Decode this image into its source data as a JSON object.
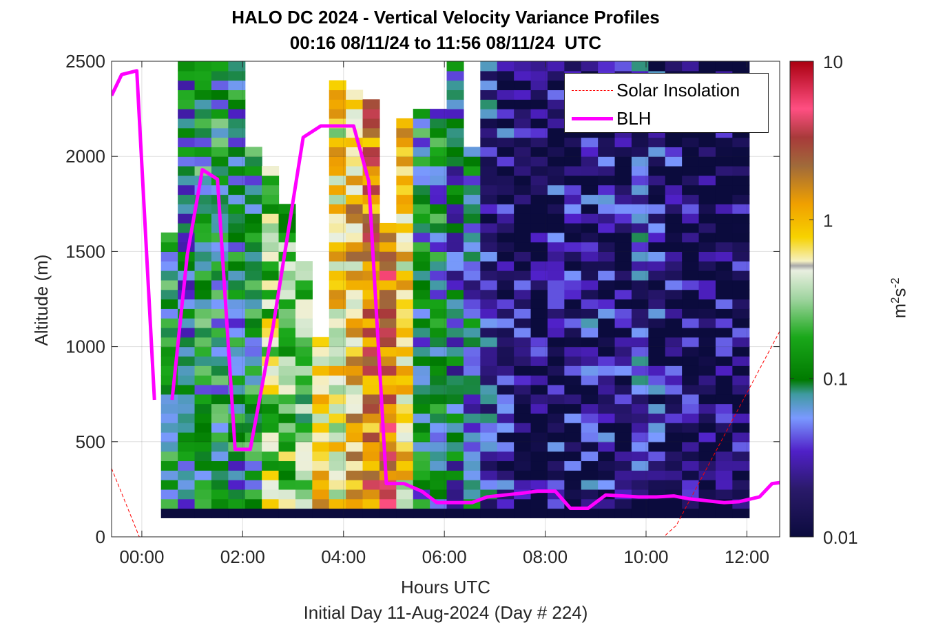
{
  "chart_data": {
    "type": "heatmap",
    "title": "HALO DC 2024 - Vertical Velocity Variance Profiles",
    "subtitle": "00:16 08/11/24 to 11:56 08/11/24  UTC",
    "xlabel": "Hours UTC",
    "xlabel_secondary": "Initial Day 11-Aug-2024 (Day # 224)",
    "ylabel": "Altitude (m)",
    "xlim": [
      -0.6,
      12.65
    ],
    "ylim": [
      0,
      2500
    ],
    "x_ticks": [
      0,
      2,
      4,
      6,
      8,
      10,
      12
    ],
    "x_tick_labels": [
      "00:00",
      "02:00",
      "04:00",
      "06:00",
      "08:00",
      "10:00",
      "12:00"
    ],
    "y_ticks": [
      0,
      500,
      1000,
      1500,
      2000,
      2500
    ],
    "y_tick_labels": [
      "0",
      "500",
      "1000",
      "1500",
      "2000",
      "2500"
    ],
    "grid": true,
    "legend_position": "top-right",
    "colorbar": {
      "label_base": "m",
      "label_sup1": "2",
      "label_mid": "s",
      "label_sup2": "-2",
      "scale": "log",
      "range": [
        0.01,
        10
      ],
      "ticks": [
        0.01,
        0.1,
        1,
        10
      ],
      "tick_labels": [
        "0.01",
        "0.1",
        "1",
        "10"
      ]
    },
    "heatmap": {
      "x_start_hour": 0.38,
      "time_step_hours": 0.3333,
      "n_columns": 35,
      "altitude_start_m": 100,
      "altitude_step_m": 50,
      "top_altitude_by_column": [
        1600,
        2500,
        2500,
        2500,
        2500,
        2050,
        1950,
        1750,
        1450,
        1050,
        2400,
        2350,
        2300,
        1650,
        2200,
        2250,
        2250,
        2500,
        2050,
        2500,
        2500,
        2500,
        2500,
        2500,
        2500,
        2500,
        2500,
        2500,
        2500,
        2500,
        2500,
        2500,
        2500,
        2500,
        2500
      ],
      "column_log10_mean": [
        -1.05,
        -1.2,
        -1.05,
        -1.1,
        -1.15,
        -1.1,
        -0.55,
        -0.65,
        -0.75,
        -0.15,
        -0.25,
        -0.05,
        0.2,
        0.35,
        -0.2,
        -1.1,
        -1.15,
        -1.3,
        -1.3,
        -1.55,
        -1.75,
        -1.85,
        -1.9,
        -1.8,
        -1.85,
        -1.7,
        -1.75,
        -1.85,
        -1.6,
        -1.75,
        -1.85,
        -1.9,
        -1.95,
        -1.9,
        -1.9
      ],
      "lowest_bin_log10": -2
    },
    "series": [
      {
        "name": "BLH",
        "color": "#ff00ff",
        "segments": [
          [
            [
              -0.6,
              2320
            ],
            [
              -0.4,
              2430
            ],
            [
              -0.1,
              2450
            ],
            [
              0.25,
              720
            ]
          ],
          [
            [
              0.6,
              720
            ],
            [
              0.9,
              1480
            ],
            [
              1.2,
              1930
            ],
            [
              1.5,
              1880
            ],
            [
              1.85,
              460
            ],
            [
              2.15,
              460
            ],
            [
              2.6,
              1100
            ],
            [
              3.2,
              2100
            ],
            [
              3.55,
              2160
            ],
            [
              4.2,
              2160
            ],
            [
              4.5,
              1870
            ],
            [
              4.85,
              280
            ],
            [
              5.2,
              280
            ],
            [
              5.55,
              240
            ],
            [
              5.85,
              180
            ],
            [
              6.2,
              180
            ],
            [
              6.55,
              180
            ],
            [
              6.85,
              210
            ],
            [
              7.2,
              220
            ],
            [
              7.55,
              230
            ],
            [
              7.85,
              240
            ],
            [
              8.2,
              240
            ],
            [
              8.5,
              150
            ],
            [
              8.85,
              150
            ],
            [
              9.2,
              220
            ],
            [
              9.55,
              215
            ],
            [
              9.85,
              210
            ],
            [
              10.2,
              210
            ],
            [
              10.55,
              215
            ],
            [
              10.85,
              200
            ],
            [
              11.2,
              190
            ],
            [
              11.55,
              180
            ],
            [
              11.85,
              185
            ],
            [
              12.25,
              210
            ],
            [
              12.5,
              280
            ],
            [
              12.65,
              285
            ]
          ]
        ]
      },
      {
        "name": "Solar Insolation",
        "color": "#ff0000",
        "points": [
          [
            -0.6,
            360
          ],
          [
            -0.05,
            0
          ],
          [
            10.35,
            0
          ],
          [
            10.6,
            60
          ],
          [
            12.65,
            1080
          ]
        ]
      }
    ]
  }
}
